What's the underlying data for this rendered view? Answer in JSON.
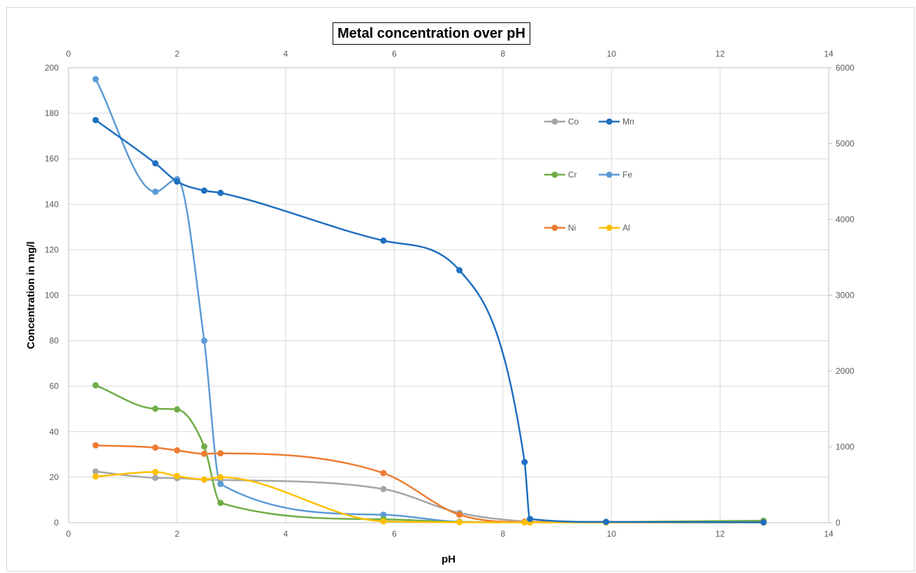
{
  "chart_data": {
    "type": "line",
    "title": "Metal concentration over pH",
    "xlabel": "pH",
    "ylabel": "Concentration in mg/l",
    "xlim": [
      0,
      14
    ],
    "ylim": [
      0,
      200
    ],
    "y2lim": [
      0,
      6000
    ],
    "x_ticks": [
      "0",
      "2",
      "4",
      "6",
      "8",
      "10",
      "12",
      "14"
    ],
    "x_top_ticks": [
      "0",
      "2",
      "4",
      "6",
      "8",
      "10",
      "12",
      "14"
    ],
    "y_ticks": [
      "0",
      "20",
      "40",
      "60",
      "80",
      "100",
      "120",
      "140",
      "160",
      "180",
      "200"
    ],
    "y2_ticks": [
      "0",
      "1000",
      "2000",
      "3000",
      "4000",
      "5000",
      "6000"
    ],
    "grid": true,
    "legend_position": "right",
    "series": [
      {
        "name": "Co",
        "color": "#a5a5a5",
        "axis": "left",
        "x": [
          0.5,
          1.6,
          2.0,
          2.5,
          2.8,
          5.8,
          7.2,
          8.4,
          8.5,
          9.9,
          12.8
        ],
        "y": [
          22.5,
          19.7,
          19.6,
          18.9,
          18.8,
          14.8,
          4.3,
          0.5,
          0.4,
          0.4,
          0.2
        ]
      },
      {
        "name": "Mn",
        "color": "#1f6fbf",
        "axis": "right",
        "x": [
          0.5,
          1.6,
          2.0,
          2.5,
          2.8,
          5.8,
          7.2,
          8.4,
          8.5,
          9.9,
          12.8
        ],
        "y": [
          5310,
          4740,
          4500,
          4380,
          4350,
          3720,
          3330,
          800,
          50,
          10,
          5
        ]
      },
      {
        "name": "Cr",
        "color": "#70ad47",
        "axis": "left",
        "x": [
          0.5,
          1.6,
          2.0,
          2.5,
          2.8,
          5.8,
          7.2,
          8.4,
          8.5,
          9.9,
          12.8
        ],
        "y": [
          60.4,
          50.1,
          49.8,
          33.5,
          8.7,
          1.5,
          0.3,
          0.2,
          0.2,
          0.3,
          0.9
        ]
      },
      {
        "name": "Fe",
        "color": "#5b9bd5",
        "axis": "left",
        "x": [
          0.5,
          1.6,
          2.0,
          2.5,
          2.8,
          5.8,
          7.2,
          8.4,
          8.5,
          9.9,
          12.8
        ],
        "y": [
          195,
          145.5,
          151,
          80,
          17,
          3.5,
          0.4,
          0.2,
          0.2,
          0.2,
          0.1
        ]
      },
      {
        "name": "Ni",
        "color": "#ed7d31",
        "axis": "left",
        "x": [
          0.5,
          1.6,
          2.0,
          2.5,
          2.8,
          5.8,
          7.2,
          8.4,
          8.5,
          9.9,
          12.8
        ],
        "y": [
          34,
          33,
          31.8,
          30.3,
          30.5,
          21.8,
          3.5,
          0.3,
          0.3,
          0.2,
          0.2
        ]
      },
      {
        "name": "Al",
        "color": "#ffc000",
        "axis": "left",
        "x": [
          0.5,
          1.6,
          2.0,
          2.5,
          2.8,
          5.8,
          7.2,
          8.4,
          8.5,
          9.9,
          12.8
        ],
        "y": [
          20.3,
          22.3,
          20.5,
          19.0,
          20.0,
          0.6,
          0.2,
          0.1,
          0.1,
          0.1,
          0.1
        ]
      }
    ]
  }
}
